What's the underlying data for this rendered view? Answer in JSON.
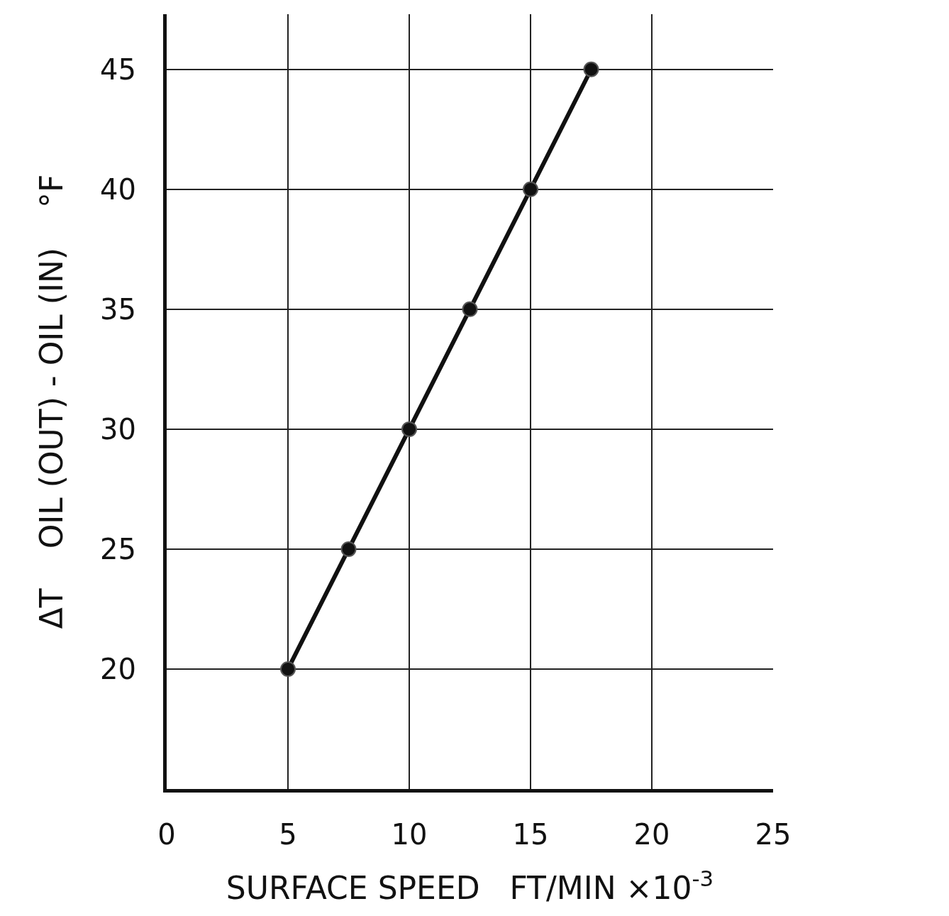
{
  "chart_data": {
    "type": "line",
    "xlabel": "SURFACE SPEED   FT/MIN ×10$^{-3}$",
    "ylabel": "ΔT    OIL (OUT) - OIL (IN)    °F",
    "x": [
      5,
      7.5,
      10,
      12.5,
      15,
      17.5
    ],
    "series": [
      {
        "color": "#111111",
        "values": [
          20,
          25,
          30,
          35,
          40,
          45
        ]
      }
    ],
    "xlim": [
      0,
      25
    ],
    "xticks": [
      0,
      5,
      10,
      15,
      20,
      25
    ],
    "ylim": [
      15,
      47.3
    ],
    "yticks": [
      20,
      25,
      30,
      35,
      40,
      45
    ],
    "grid": true,
    "marker": "circle",
    "line_style": "solid"
  }
}
